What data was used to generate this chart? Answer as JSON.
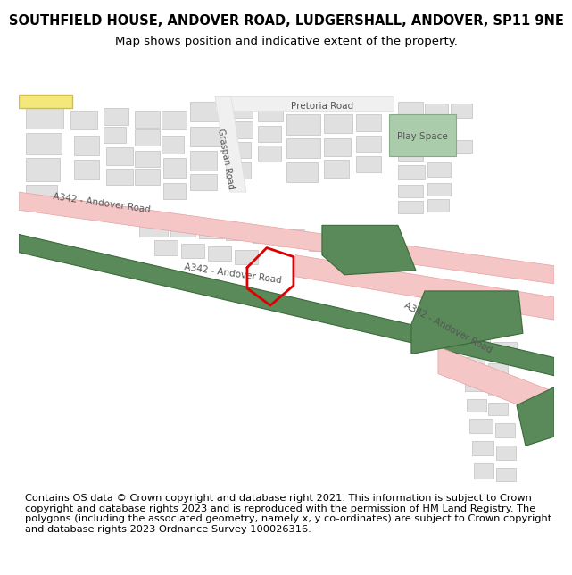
{
  "title_line1": "SOUTHFIELD HOUSE, ANDOVER ROAD, LUDGERSHALL, ANDOVER, SP11 9NE",
  "title_line2": "Map shows position and indicative extent of the property.",
  "footer_text": "Contains OS data © Crown copyright and database right 2021. This information is subject to Crown copyright and database rights 2023 and is reproduced with the permission of HM Land Registry. The polygons (including the associated geometry, namely x, y co-ordinates) are subject to Crown copyright and database rights 2023 Ordnance Survey 100026316.",
  "bg_color": "#ffffff",
  "map_bg": "#ffffff",
  "road_pink": "#f5c6c6",
  "road_outline": "#e8a0a0",
  "green_area": "#5a8a5a",
  "building_color": "#e0e0e0",
  "building_outline": "#c0c0c0",
  "road_label_color": "#555555",
  "play_space_color": "#aaccaa",
  "plot_outline_color": "#dd0000",
  "plot_linewidth": 2.0,
  "title_fontsize": 10.5,
  "subtitle_fontsize": 9.5,
  "footer_fontsize": 8.2,
  "yellow_road": "#f5e87a"
}
